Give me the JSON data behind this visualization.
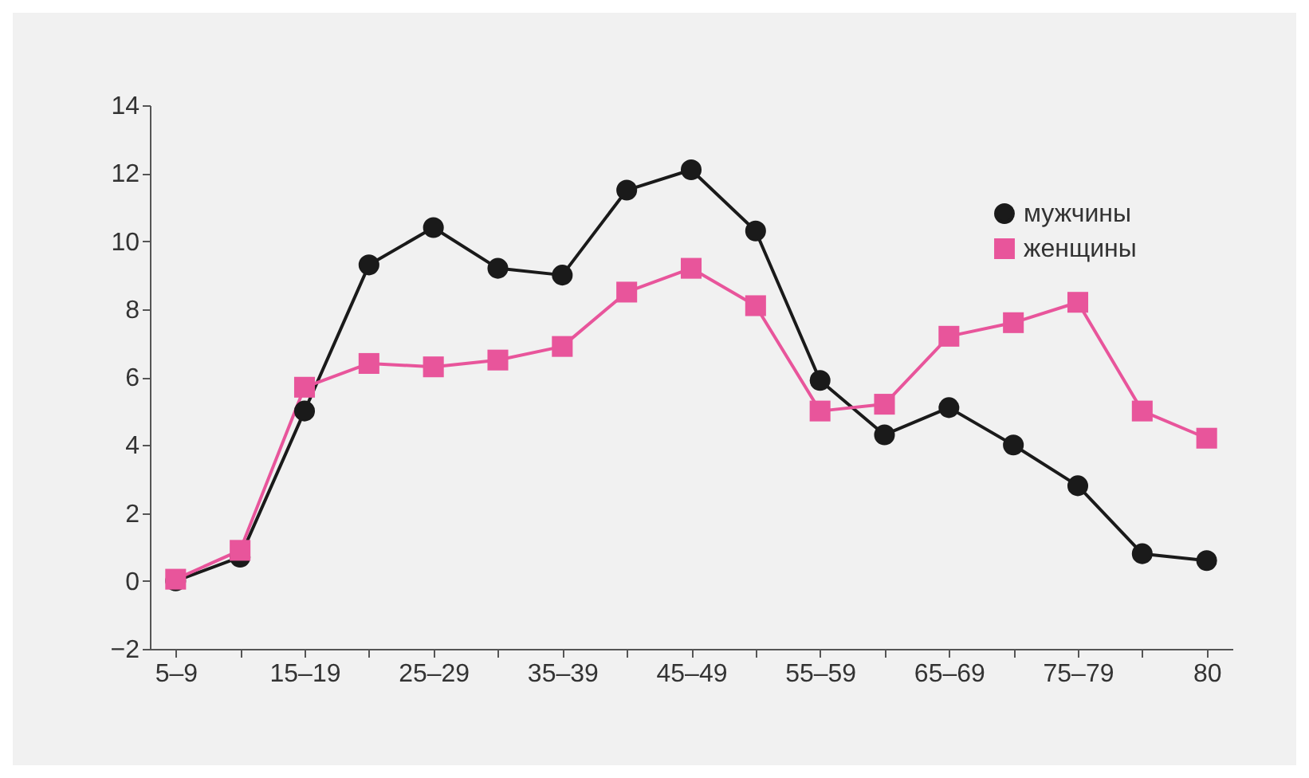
{
  "chart_data": {
    "type": "line",
    "categories": [
      "5–9",
      null,
      "15–19",
      null,
      "25–29",
      null,
      "35–39",
      null,
      "45–49",
      null,
      "55–59",
      null,
      "65–69",
      null,
      "75–79",
      null,
      "80"
    ],
    "series": [
      {
        "name": "мужчины",
        "color": "#1a1a1a",
        "marker": "circle",
        "values": [
          0,
          0.7,
          5.0,
          9.3,
          10.4,
          9.2,
          9.0,
          11.5,
          12.1,
          10.3,
          5.9,
          4.3,
          5.1,
          4.0,
          2.8,
          0.8,
          0.6
        ]
      },
      {
        "name": "женщины",
        "color": "#e8559b",
        "marker": "square",
        "values": [
          0.05,
          0.9,
          5.7,
          6.4,
          6.3,
          6.5,
          6.9,
          8.5,
          9.2,
          8.1,
          5.0,
          5.2,
          7.2,
          7.6,
          8.2,
          5.0,
          4.2
        ]
      }
    ],
    "ylim": [
      -2,
      14
    ],
    "yticks": [
      -2,
      0,
      2,
      4,
      6,
      8,
      10,
      12,
      14
    ],
    "grid": false,
    "legend": "top right"
  }
}
